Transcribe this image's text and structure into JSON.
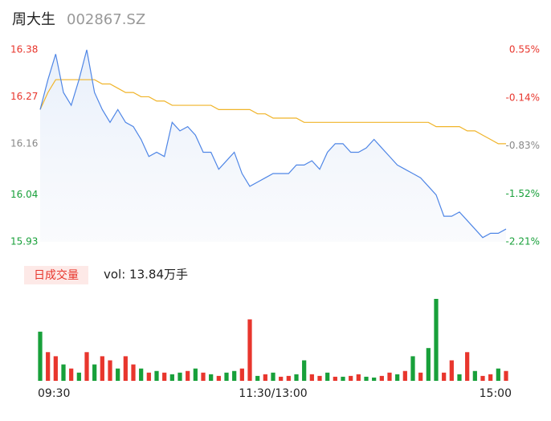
{
  "chart_data": {
    "type": "intraday",
    "title": "周大生",
    "subtitle": "002867.SZ",
    "x": [
      0,
      4,
      8,
      12,
      16,
      20,
      24,
      28,
      32,
      36,
      40,
      44,
      48,
      52,
      56,
      60,
      64,
      68,
      72,
      76,
      80,
      84,
      88,
      92,
      96,
      100,
      104,
      108,
      112,
      116,
      120,
      124,
      128,
      132,
      136,
      140,
      144,
      148,
      152,
      156,
      160,
      164,
      168,
      172,
      176,
      180,
      184,
      188,
      192,
      196,
      200,
      204,
      208,
      212,
      216,
      220,
      224,
      228,
      232,
      236,
      240
    ],
    "xlim": [
      0,
      240
    ],
    "xticks": [
      {
        "value": 0,
        "label": "09:30"
      },
      {
        "value": 120,
        "label": "11:30/13:00"
      },
      {
        "value": 240,
        "label": "15:00"
      }
    ],
    "ylim": [
      15.93,
      16.38
    ],
    "yticks": [
      16.38,
      16.27,
      16.16,
      16.04,
      15.93
    ],
    "y2lim": [
      -2.21,
      0.55
    ],
    "y2ticks": [
      {
        "value": 0.55,
        "label": "0.55%"
      },
      {
        "value": -0.14,
        "label": "-0.14%"
      },
      {
        "value": -0.83,
        "label": "-0.83%"
      },
      {
        "value": -1.52,
        "label": "-1.52%"
      },
      {
        "value": -2.21,
        "label": "-2.21%"
      }
    ],
    "tick_colors": [
      "#e8362d",
      "#e8362d",
      "#888888",
      "#18a03a",
      "#18a03a"
    ],
    "series": [
      {
        "name": "price",
        "color": "#4f86e6",
        "values": [
          16.24,
          16.31,
          16.37,
          16.28,
          16.25,
          16.31,
          16.38,
          16.28,
          16.24,
          16.21,
          16.24,
          16.21,
          16.2,
          16.17,
          16.13,
          16.14,
          16.13,
          16.21,
          16.19,
          16.2,
          16.18,
          16.14,
          16.14,
          16.1,
          16.12,
          16.14,
          16.09,
          16.06,
          16.07,
          16.08,
          16.09,
          16.09,
          16.09,
          16.11,
          16.11,
          16.12,
          16.1,
          16.14,
          16.16,
          16.16,
          16.14,
          16.14,
          16.15,
          16.17,
          16.15,
          16.13,
          16.11,
          16.1,
          16.09,
          16.08,
          16.06,
          16.04,
          15.99,
          15.99,
          16.0,
          15.98,
          15.96,
          15.94,
          15.95,
          15.95,
          15.96
        ]
      },
      {
        "name": "average",
        "color": "#f0b429",
        "values": [
          16.24,
          16.28,
          16.31,
          16.31,
          16.31,
          16.31,
          16.31,
          16.31,
          16.3,
          16.3,
          16.29,
          16.28,
          16.28,
          16.27,
          16.27,
          16.26,
          16.26,
          16.25,
          16.25,
          16.25,
          16.25,
          16.25,
          16.25,
          16.24,
          16.24,
          16.24,
          16.24,
          16.24,
          16.23,
          16.23,
          16.22,
          16.22,
          16.22,
          16.22,
          16.21,
          16.21,
          16.21,
          16.21,
          16.21,
          16.21,
          16.21,
          16.21,
          16.21,
          16.21,
          16.21,
          16.21,
          16.21,
          16.21,
          16.21,
          16.21,
          16.21,
          16.2,
          16.2,
          16.2,
          16.2,
          16.19,
          16.19,
          16.18,
          16.17,
          16.16,
          16.16
        ]
      }
    ],
    "volume_label": "日成交量",
    "volume_text": "vol: 13.84万手",
    "volume": [
      60,
      35,
      30,
      20,
      15,
      10,
      35,
      20,
      30,
      25,
      15,
      30,
      20,
      15,
      10,
      12,
      10,
      8,
      10,
      12,
      15,
      10,
      8,
      6,
      10,
      12,
      15,
      75,
      6,
      8,
      10,
      5,
      6,
      8,
      25,
      8,
      6,
      10,
      5,
      5,
      6,
      8,
      5,
      4,
      6,
      10,
      8,
      12,
      30,
      10,
      40,
      100,
      10,
      25,
      8,
      35,
      12,
      6,
      8,
      15,
      12
    ],
    "volume_colors": [
      "#18a03a",
      "#e8362d",
      "#e8362d",
      "#18a03a",
      "#e8362d",
      "#18a03a",
      "#e8362d",
      "#18a03a",
      "#e8362d",
      "#e8362d",
      "#18a03a",
      "#e8362d",
      "#e8362d",
      "#18a03a",
      "#e8362d",
      "#18a03a",
      "#e8362d",
      "#18a03a",
      "#18a03a",
      "#e8362d",
      "#18a03a",
      "#e8362d",
      "#18a03a",
      "#e8362d",
      "#18a03a",
      "#18a03a",
      "#e8362d",
      "#e8362d",
      "#18a03a",
      "#e8362d",
      "#18a03a",
      "#e8362d",
      "#e8362d",
      "#18a03a",
      "#18a03a",
      "#e8362d",
      "#e8362d",
      "#18a03a",
      "#e8362d",
      "#18a03a",
      "#e8362d",
      "#e8362d",
      "#18a03a",
      "#18a03a",
      "#e8362d",
      "#e8362d",
      "#18a03a",
      "#e8362d",
      "#18a03a",
      "#e8362d",
      "#18a03a",
      "#18a03a",
      "#e8362d",
      "#e8362d",
      "#18a03a",
      "#e8362d",
      "#18a03a",
      "#e8362d",
      "#e8362d",
      "#18a03a",
      "#e8362d"
    ]
  }
}
